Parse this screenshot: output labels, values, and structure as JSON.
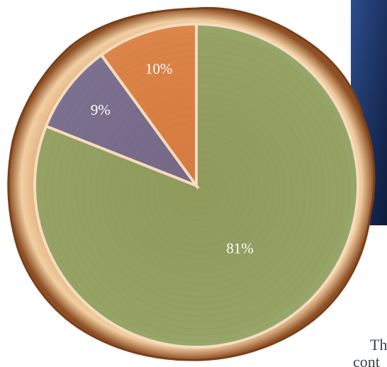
{
  "chart_data": {
    "type": "pie",
    "categories": [
      null,
      null,
      null
    ],
    "values": [
      81,
      9,
      10
    ],
    "value_labels": [
      "81%",
      "9%",
      "10%"
    ],
    "colors": [
      "#7f9f5e",
      "#5f5f95",
      "#d9773a"
    ],
    "start_angle": 0,
    "direction": "clockwise"
  },
  "cropped_text": [
    "Th",
    "cont"
  ]
}
